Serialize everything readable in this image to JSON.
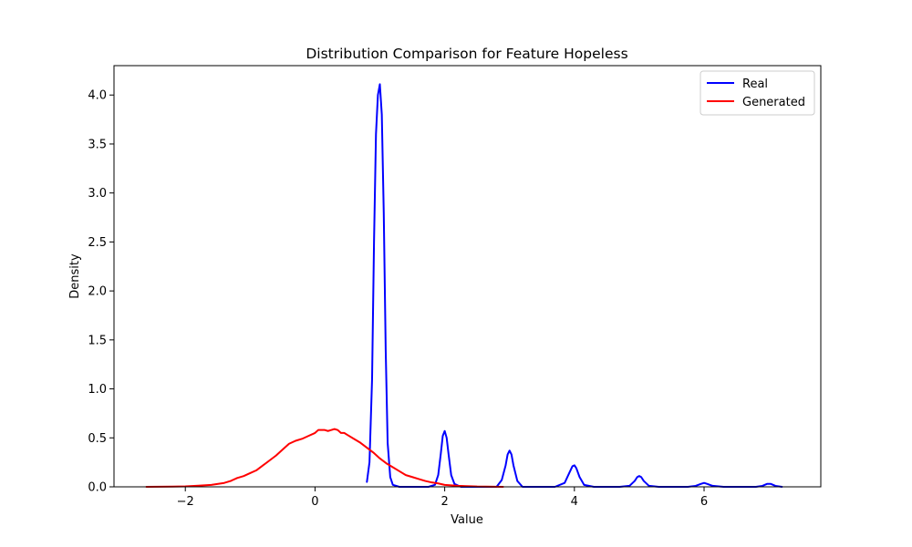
{
  "chart_data": {
    "type": "line",
    "title": "Distribution Comparison for Feature Hopeless",
    "xlabel": "Value",
    "ylabel": "Density",
    "xlim": [
      -3.1,
      7.8
    ],
    "ylim": [
      0,
      4.3
    ],
    "x_ticks": [
      -2,
      0,
      2,
      4,
      6
    ],
    "x_tick_labels": [
      "−2",
      "0",
      "2",
      "4",
      "6"
    ],
    "y_ticks": [
      0.0,
      0.5,
      1.0,
      1.5,
      2.0,
      2.5,
      3.0,
      3.5,
      4.0
    ],
    "y_tick_labels": [
      "0.0",
      "0.5",
      "1.0",
      "1.5",
      "2.0",
      "2.5",
      "3.0",
      "3.5",
      "4.0"
    ],
    "grid": false,
    "legend_position": "top-right",
    "series": [
      {
        "name": "Real",
        "color": "#0000ff",
        "x": [
          0.8,
          0.84,
          0.88,
          0.91,
          0.94,
          0.97,
          1.0,
          1.03,
          1.06,
          1.09,
          1.12,
          1.16,
          1.2,
          1.3,
          1.5,
          1.75,
          1.85,
          1.9,
          1.94,
          1.97,
          2.0,
          2.03,
          2.06,
          2.1,
          2.15,
          2.25,
          2.5,
          2.8,
          2.88,
          2.94,
          2.97,
          3.0,
          3.03,
          3.06,
          3.12,
          3.2,
          3.4,
          3.7,
          3.85,
          3.92,
          3.97,
          4.0,
          4.03,
          4.08,
          4.15,
          4.3,
          4.7,
          4.85,
          4.93,
          4.97,
          5.0,
          5.03,
          5.07,
          5.15,
          5.3,
          5.75,
          5.87,
          5.95,
          6.0,
          6.05,
          6.13,
          6.3,
          6.8,
          6.9,
          6.97,
          7.0,
          7.03,
          7.1,
          7.2
        ],
        "y": [
          0.05,
          0.25,
          1.1,
          2.5,
          3.6,
          4.0,
          4.11,
          3.8,
          2.8,
          1.4,
          0.45,
          0.1,
          0.02,
          0.0,
          0.0,
          0.0,
          0.02,
          0.12,
          0.34,
          0.52,
          0.57,
          0.5,
          0.33,
          0.12,
          0.03,
          0.0,
          0.0,
          0.0,
          0.07,
          0.22,
          0.33,
          0.37,
          0.33,
          0.22,
          0.06,
          0.0,
          0.0,
          0.0,
          0.04,
          0.14,
          0.21,
          0.22,
          0.19,
          0.1,
          0.02,
          0.0,
          0.0,
          0.01,
          0.06,
          0.1,
          0.11,
          0.1,
          0.06,
          0.01,
          0.0,
          0.0,
          0.01,
          0.03,
          0.04,
          0.03,
          0.01,
          0.0,
          0.0,
          0.01,
          0.03,
          0.03,
          0.03,
          0.01,
          0.0
        ]
      },
      {
        "name": "Generated",
        "color": "#ff0000",
        "x": [
          -2.6,
          -2.2,
          -2.0,
          -1.8,
          -1.6,
          -1.4,
          -1.3,
          -1.2,
          -1.1,
          -1.0,
          -0.9,
          -0.8,
          -0.7,
          -0.6,
          -0.5,
          -0.4,
          -0.3,
          -0.2,
          -0.1,
          0.0,
          0.05,
          0.1,
          0.15,
          0.2,
          0.25,
          0.3,
          0.35,
          0.4,
          0.45,
          0.5,
          0.6,
          0.7,
          0.8,
          0.9,
          1.0,
          1.1,
          1.2,
          1.3,
          1.4,
          1.5,
          1.6,
          1.7,
          1.8,
          1.9,
          2.0,
          2.2,
          2.5,
          2.9
        ],
        "y": [
          0.0,
          0.002,
          0.005,
          0.012,
          0.02,
          0.04,
          0.06,
          0.09,
          0.11,
          0.14,
          0.17,
          0.22,
          0.27,
          0.32,
          0.38,
          0.44,
          0.47,
          0.49,
          0.52,
          0.55,
          0.58,
          0.58,
          0.58,
          0.57,
          0.58,
          0.59,
          0.58,
          0.55,
          0.55,
          0.53,
          0.49,
          0.45,
          0.4,
          0.35,
          0.29,
          0.24,
          0.2,
          0.16,
          0.12,
          0.1,
          0.08,
          0.06,
          0.045,
          0.035,
          0.02,
          0.01,
          0.003,
          0.0
        ]
      }
    ]
  }
}
